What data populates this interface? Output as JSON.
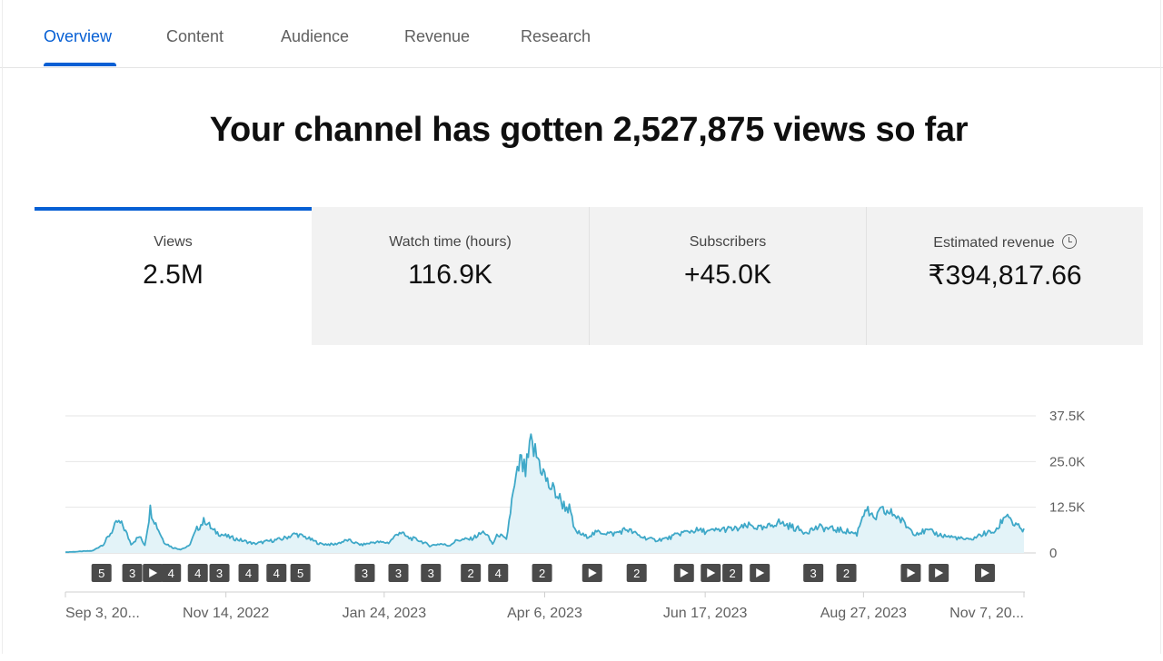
{
  "tabs": [
    {
      "label": "Overview",
      "active": true
    },
    {
      "label": "Content",
      "active": false
    },
    {
      "label": "Audience",
      "active": false
    },
    {
      "label": "Revenue",
      "active": false
    },
    {
      "label": "Research",
      "active": false
    }
  ],
  "headline": "Your channel has gotten 2,527,875 views so far",
  "metrics": [
    {
      "label": "Views",
      "value": "2.5M",
      "selected": true
    },
    {
      "label": "Watch time (hours)",
      "value": "116.9K",
      "selected": false
    },
    {
      "label": "Subscribers",
      "value": "+45.0K",
      "selected": false
    },
    {
      "label": "Estimated revenue",
      "value": "₹394,817.66",
      "selected": false,
      "icon": "clock-icon"
    }
  ],
  "colors": {
    "accent": "#065fd4",
    "line": "#3ea8c8",
    "fill": "#e3f3f8"
  },
  "chart_data": {
    "type": "area",
    "yticks": [
      "37.5K",
      "25.0K",
      "12.5K",
      "0"
    ],
    "ylim": [
      0,
      37500
    ],
    "xticks": [
      {
        "label": "Sep 3, 20...",
        "index": 0
      },
      {
        "label": "Nov 14, 2022",
        "index": 72
      },
      {
        "label": "Jan 24, 2023",
        "index": 143
      },
      {
        "label": "Apr 6, 2023",
        "index": 215
      },
      {
        "label": "Jun 17, 2023",
        "index": 287
      },
      {
        "label": "Aug 27, 2023",
        "index": 358
      },
      {
        "label": "Nov 7, 20...",
        "index": 430
      }
    ],
    "anchors": [
      [
        0,
        200
      ],
      [
        10,
        400
      ],
      [
        20,
        600
      ],
      [
        28,
        2500
      ],
      [
        34,
        6000
      ],
      [
        38,
        8500
      ],
      [
        42,
        7500
      ],
      [
        48,
        2500
      ],
      [
        54,
        4500
      ],
      [
        58,
        2200
      ],
      [
        62,
        12000
      ],
      [
        66,
        8000
      ],
      [
        72,
        3000
      ],
      [
        78,
        1500
      ],
      [
        84,
        1000
      ],
      [
        90,
        1800
      ],
      [
        96,
        6500
      ],
      [
        102,
        9000
      ],
      [
        108,
        6000
      ],
      [
        118,
        4500
      ],
      [
        128,
        3500
      ],
      [
        138,
        2500
      ],
      [
        148,
        3200
      ],
      [
        158,
        3800
      ],
      [
        168,
        5200
      ],
      [
        176,
        4200
      ],
      [
        186,
        2500
      ],
      [
        196,
        2300
      ],
      [
        206,
        3500
      ],
      [
        216,
        2200
      ],
      [
        226,
        3000
      ],
      [
        236,
        2800
      ],
      [
        244,
        5800
      ],
      [
        250,
        4200
      ],
      [
        258,
        3500
      ],
      [
        266,
        2000
      ],
      [
        274,
        2500
      ],
      [
        280,
        2000
      ],
      [
        286,
        3500
      ],
      [
        296,
        3800
      ],
      [
        306,
        5800
      ],
      [
        312,
        2500
      ],
      [
        316,
        5200
      ],
      [
        322,
        3500
      ],
      [
        326,
        14000
      ],
      [
        332,
        25000
      ],
      [
        336,
        22000
      ],
      [
        340,
        29500
      ],
      [
        346,
        25000
      ],
      [
        352,
        19000
      ],
      [
        358,
        16500
      ],
      [
        364,
        13000
      ],
      [
        368,
        12000
      ],
      [
        372,
        6000
      ],
      [
        380,
        4500
      ],
      [
        390,
        5800
      ],
      [
        400,
        5200
      ],
      [
        410,
        6500
      ],
      [
        420,
        4500
      ],
      [
        430,
        3500
      ],
      [
        440,
        4000
      ],
      [
        450,
        5500
      ],
      [
        460,
        6200
      ],
      [
        470,
        5800
      ],
      [
        480,
        6500
      ],
      [
        490,
        6500
      ],
      [
        500,
        7500
      ],
      [
        510,
        6500
      ],
      [
        520,
        8500
      ],
      [
        530,
        7200
      ],
      [
        540,
        5800
      ],
      [
        550,
        7000
      ],
      [
        560,
        6500
      ],
      [
        570,
        6000
      ],
      [
        578,
        5200
      ],
      [
        584,
        12500
      ],
      [
        590,
        9000
      ],
      [
        596,
        11500
      ],
      [
        606,
        10500
      ],
      [
        614,
        7500
      ],
      [
        620,
        5500
      ],
      [
        630,
        6000
      ],
      [
        640,
        4800
      ],
      [
        650,
        4200
      ],
      [
        660,
        3500
      ],
      [
        670,
        5200
      ],
      [
        680,
        6000
      ],
      [
        684,
        9000
      ],
      [
        688,
        11000
      ],
      [
        692,
        8000
      ],
      [
        700,
        6000
      ]
    ],
    "n_points": 701,
    "markers": [
      {
        "idx": 33,
        "t": "5"
      },
      {
        "idx": 87,
        "t": "3"
      },
      {
        "idx": 123,
        "t": "play"
      },
      {
        "idx": 155,
        "t": "4"
      },
      {
        "idx": 202,
        "t": "4"
      },
      {
        "idx": 240,
        "t": "3"
      },
      {
        "idx": 291,
        "t": "4"
      },
      {
        "idx": 340,
        "t": "4"
      },
      {
        "idx": 382,
        "t": "5"
      },
      {
        "idx": 495,
        "t": "3"
      },
      {
        "idx": 554,
        "t": "3"
      },
      {
        "idx": 611,
        "t": "3"
      },
      {
        "idx": 681,
        "t": "2"
      },
      {
        "idx": 729,
        "t": "4"
      },
      {
        "idx": 806,
        "t": "2"
      },
      {
        "idx": 894,
        "t": "play"
      },
      {
        "idx": 972,
        "t": "2"
      },
      {
        "idx": 1055,
        "t": "play"
      },
      {
        "idx": 1102,
        "t": "play"
      },
      {
        "idx": 1140,
        "t": "2"
      },
      {
        "idx": 1188,
        "t": "play"
      },
      {
        "idx": 1282,
        "t": "3"
      },
      {
        "idx": 1340,
        "t": "2"
      },
      {
        "idx": 1453,
        "t": "play"
      },
      {
        "idx": 1502,
        "t": "play"
      },
      {
        "idx": 1583,
        "t": "play"
      }
    ],
    "marker_range": 1650
  }
}
